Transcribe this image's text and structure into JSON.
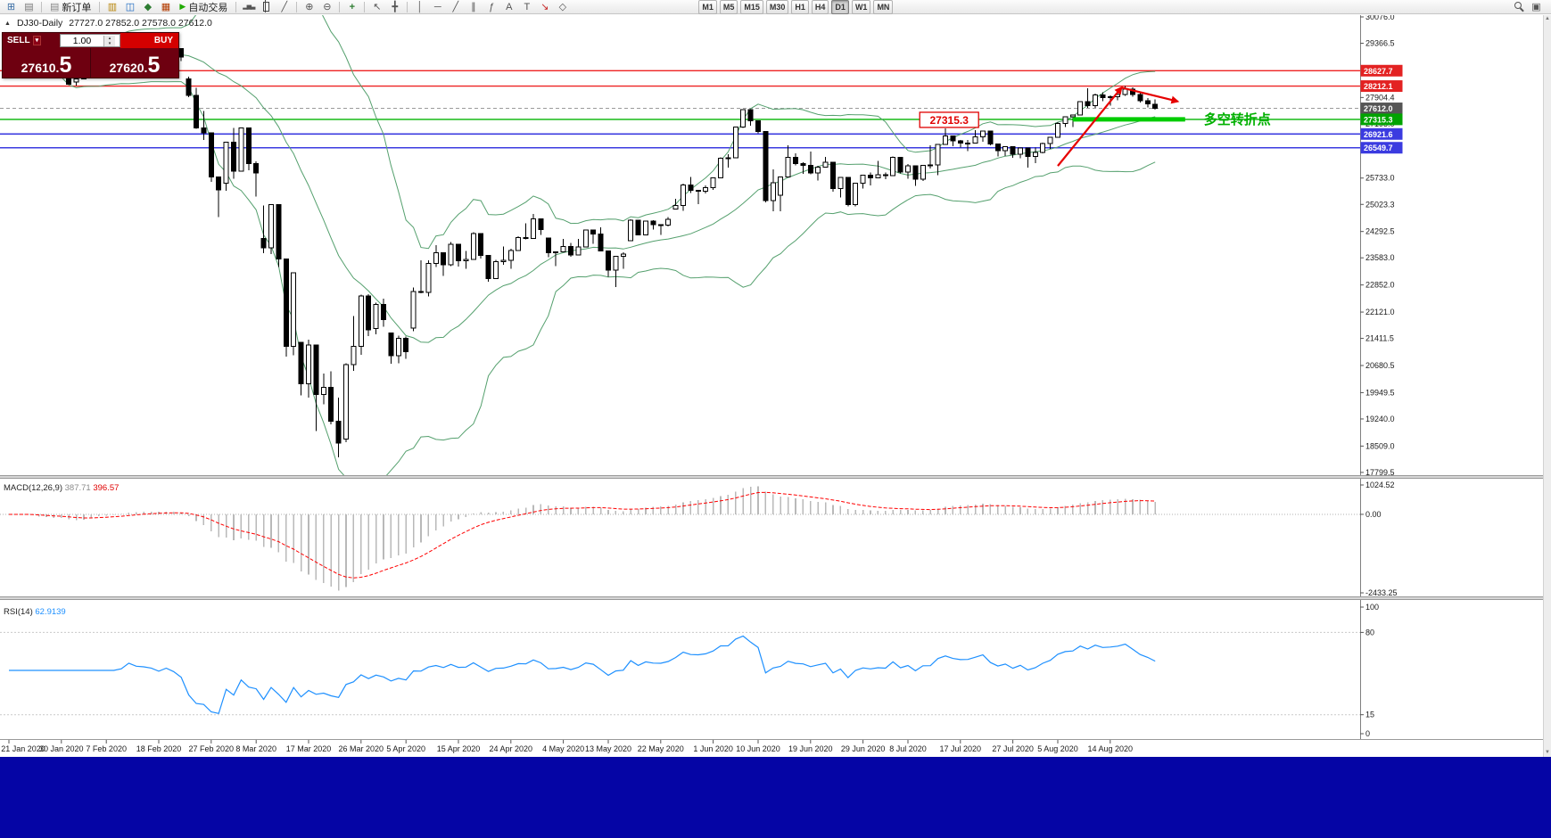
{
  "toolbar": {
    "new_order_label": "新订单",
    "auto_trading_label": "自动交易",
    "timeframes": [
      "M1",
      "M5",
      "M15",
      "M30",
      "H1",
      "H4",
      "D1",
      "W1",
      "MN"
    ],
    "active_timeframe": "D1"
  },
  "icons": {
    "new_chart": "⊞",
    "profiles": "▤",
    "new_order": "▤",
    "market_watch": "▥",
    "data_window": "◫",
    "navigator": "◆",
    "terminal": "▦",
    "auto_play": "▶",
    "bars": "▂▅▃",
    "line_chart": "╱",
    "zoom_in": "⊕",
    "zoom_out": "⊖",
    "indicators": "+",
    "cursor": "↖",
    "crosshair": "╋",
    "vline": "│",
    "hline": "─",
    "trendline": "╱",
    "channel": "∥",
    "fibonacci": "ƒ",
    "text": "A",
    "label": "T",
    "arrow": "↘",
    "shapes": "◇",
    "window_layout": "▣",
    "collapse": "▲",
    "caret": "▾",
    "spin_up": "▴",
    "spin_down": "▾",
    "scroll_up": "▲",
    "scroll_down": "▼"
  },
  "chart_header": {
    "title": "DJ30-Daily",
    "ohlc": "27727.0 27852.0 27578.0 27612.0"
  },
  "trade_panel": {
    "sell_label": "SELL",
    "buy_label": "BUY",
    "volume": "1.00",
    "sell_price": {
      "main": "27610.",
      "big": "5"
    },
    "buy_price": {
      "main": "27620.",
      "big": "5"
    }
  },
  "price_axis": {
    "plain_labels": [
      30076.0,
      29366.5,
      27904.4,
      27195.0,
      25733.0,
      25023.3,
      24292.5,
      23583.0,
      22852.0,
      22121.0,
      21411.5,
      20680.5,
      19949.5,
      19240.0,
      18509.0,
      17799.5
    ],
    "badges": [
      {
        "text": "28627.7",
        "price": 28627.7,
        "color": "#e32222"
      },
      {
        "text": "28212.1",
        "price": 28212.1,
        "color": "#e32222"
      },
      {
        "text": "27612.0",
        "price": 27612.0,
        "color": "#555555"
      },
      {
        "text": "27315.3",
        "price": 27315.3,
        "color": "#00a300"
      },
      {
        "text": "26921.6",
        "price": 26921.6,
        "color": "#3b3be0"
      },
      {
        "text": "26549.7",
        "price": 26549.7,
        "color": "#3b3be0"
      }
    ]
  },
  "time_axis": {
    "labels": [
      {
        "index": 0,
        "text": "21 Jan 2020"
      },
      {
        "index": 7,
        "text": "30 Jan 2020"
      },
      {
        "index": 13,
        "text": "7 Feb 2020"
      },
      {
        "index": 20,
        "text": "18 Feb 2020"
      },
      {
        "index": 27,
        "text": "27 Feb 2020"
      },
      {
        "index": 33,
        "text": "8 Mar 2020"
      },
      {
        "index": 40,
        "text": "17 Mar 2020"
      },
      {
        "index": 47,
        "text": "26 Mar 2020"
      },
      {
        "index": 53,
        "text": "5 Apr 2020"
      },
      {
        "index": 60,
        "text": "15 Apr 2020"
      },
      {
        "index": 67,
        "text": "24 Apr 2020"
      },
      {
        "index": 74,
        "text": "4 May 2020"
      },
      {
        "index": 80,
        "text": "13 May 2020"
      },
      {
        "index": 87,
        "text": "22 May 2020"
      },
      {
        "index": 94,
        "text": "1 Jun 2020"
      },
      {
        "index": 100,
        "text": "10 Jun 2020"
      },
      {
        "index": 107,
        "text": "19 Jun 2020"
      },
      {
        "index": 114,
        "text": "29 Jun 2020"
      },
      {
        "index": 120,
        "text": "8 Jul 2020"
      },
      {
        "index": 127,
        "text": "17 Jul 2020"
      },
      {
        "index": 134,
        "text": "27 Jul 2020"
      },
      {
        "index": 140,
        "text": "5 Aug 2020"
      },
      {
        "index": 147,
        "text": "14 Aug 2020"
      }
    ]
  },
  "macd": {
    "label": "MACD(12,26,9)",
    "value_main": "387.71",
    "value_signal": "396.57",
    "params": {
      "fast": 12,
      "slow": 26,
      "signal": 9
    },
    "axis": [
      "1024.52",
      "0.00",
      "-2433.25"
    ],
    "histogram_color": "#b9b9b9",
    "signal_color": "#ff0000"
  },
  "rsi": {
    "label": "RSI(14)",
    "value": "62.9139",
    "period": 14,
    "levels": [
      80,
      15
    ],
    "axis_values": [
      100,
      80,
      15,
      0
    ],
    "axis": [
      "100",
      "80",
      "15",
      "0"
    ],
    "line_color": "#1e90ff"
  },
  "chart_data": {
    "type": "candlestick",
    "symbol": "DJ30",
    "period": "Daily",
    "price_range_top": 30124,
    "price_range_bottom": 17725,
    "overlays": {
      "bollinger": {
        "period": 20,
        "deviation": 2,
        "color": "#55a06e"
      }
    },
    "price_lines": [
      {
        "price": 28627.7,
        "color": "#ee2222",
        "width": 1.4,
        "style": "solid"
      },
      {
        "price": 28212.1,
        "color": "#ee2222",
        "width": 1.4,
        "style": "solid"
      },
      {
        "price": 27612.0,
        "color": "#9a9a9a",
        "width": 1,
        "style": "dash"
      },
      {
        "price": 27315.3,
        "color": "#00b400",
        "width": 1.4,
        "style": "solid"
      },
      {
        "price": 26921.6,
        "color": "#3b3be0",
        "width": 1.6,
        "style": "solid"
      },
      {
        "price": 26549.7,
        "color": "#3b3be0",
        "width": 1.6,
        "style": "solid"
      }
    ],
    "annotations": {
      "thick_line": {
        "price": 27315.3,
        "from_index": 142,
        "to_index": 157,
        "color": "#00cc00",
        "width": 5
      },
      "arrow_color": "#e60000",
      "arrows": [
        {
          "from": {
            "index": 140,
            "price": 26060
          },
          "to": {
            "index": 148.5,
            "price": 28170
          }
        },
        {
          "from": {
            "index": 148.5,
            "price": 28170
          },
          "to": {
            "index": 156,
            "price": 27800
          }
        }
      ],
      "price_label_box": {
        "text": "27315.3",
        "index": 125.5,
        "anchor_price": 27290
      },
      "turning_point_text": {
        "text": "多空转折点",
        "index": 159.5,
        "price": 27315.3,
        "color": "#00b000"
      }
    },
    "candles": [
      [
        29250,
        29340,
        29140,
        29196
      ],
      [
        29196,
        29320,
        29150,
        29186
      ],
      [
        29186,
        29230,
        28950,
        29160
      ],
      [
        29160,
        29290,
        28870,
        28990
      ],
      [
        28790,
        28840,
        28440,
        28536
      ],
      [
        28536,
        28780,
        28500,
        28723
      ],
      [
        28723,
        28850,
        28650,
        28734
      ],
      [
        28734,
        28880,
        28550,
        28859
      ],
      [
        28859,
        28860,
        28250,
        28256
      ],
      [
        28320,
        28490,
        28220,
        28400
      ],
      [
        28400,
        28850,
        28390,
        28808
      ],
      [
        28808,
        29310,
        28800,
        29291
      ],
      [
        29291,
        29410,
        29220,
        29380
      ],
      [
        29380,
        29390,
        29060,
        29103
      ],
      [
        29060,
        29290,
        28950,
        29277
      ],
      [
        29277,
        29415,
        29210,
        29276
      ],
      [
        29276,
        29570,
        29270,
        29551
      ],
      [
        29551,
        29560,
        29340,
        29423
      ],
      [
        29423,
        29480,
        29330,
        29398
      ],
      [
        29398,
        29420,
        29300,
        29350
      ],
      [
        29350,
        29360,
        29120,
        29232
      ],
      [
        29232,
        29409,
        29190,
        29348
      ],
      [
        29348,
        29370,
        28960,
        29220
      ],
      [
        29220,
        29230,
        28890,
        28992
      ],
      [
        28400,
        28470,
        27910,
        27961
      ],
      [
        27961,
        28160,
        27060,
        27081
      ],
      [
        27081,
        27540,
        26760,
        26958
      ],
      [
        26958,
        26960,
        25630,
        25767
      ],
      [
        25767,
        25770,
        24680,
        25409
      ],
      [
        25590,
        26710,
        25390,
        26703
      ],
      [
        26703,
        27080,
        25710,
        25917
      ],
      [
        25917,
        27100,
        25910,
        27090
      ],
      [
        27090,
        27090,
        25940,
        26121
      ],
      [
        26121,
        26180,
        25230,
        25865
      ],
      [
        24100,
        24990,
        23710,
        23851
      ],
      [
        23851,
        25020,
        23690,
        25018
      ],
      [
        25018,
        25030,
        23330,
        23553
      ],
      [
        23553,
        23560,
        20920,
        21200
      ],
      [
        21200,
        23190,
        20960,
        23185
      ],
      [
        21300,
        21310,
        19880,
        20188
      ],
      [
        20188,
        21380,
        19810,
        21237
      ],
      [
        21237,
        21240,
        18910,
        19898
      ],
      [
        19898,
        20460,
        19630,
        20087
      ],
      [
        20087,
        20530,
        19090,
        19174
      ],
      [
        19174,
        19820,
        18210,
        18592
      ],
      [
        18700,
        20740,
        18610,
        20705
      ],
      [
        20705,
        22020,
        20540,
        21200
      ],
      [
        21200,
        22590,
        20970,
        22552
      ],
      [
        22552,
        22600,
        21470,
        21637
      ],
      [
        21680,
        22380,
        21520,
        22327
      ],
      [
        22327,
        22480,
        21720,
        21917
      ],
      [
        21560,
        21570,
        20730,
        20944
      ],
      [
        20944,
        21480,
        20740,
        21413
      ],
      [
        21413,
        21460,
        20860,
        21053
      ],
      [
        21690,
        22780,
        21600,
        22680
      ],
      [
        22680,
        23520,
        22630,
        22654
      ],
      [
        22654,
        23510,
        22540,
        23434
      ],
      [
        23434,
        23930,
        23340,
        23719
      ],
      [
        23719,
        23720,
        23100,
        23391
      ],
      [
        23391,
        24010,
        23360,
        23950
      ],
      [
        23950,
        23950,
        23350,
        23504
      ],
      [
        23504,
        23770,
        23290,
        23538
      ],
      [
        23538,
        24270,
        23530,
        24242
      ],
      [
        24242,
        24250,
        23560,
        23650
      ],
      [
        23650,
        23660,
        22940,
        23018
      ],
      [
        23018,
        23530,
        23010,
        23476
      ],
      [
        23476,
        23890,
        23400,
        23515
      ],
      [
        23515,
        23830,
        23290,
        23775
      ],
      [
        23775,
        24170,
        23770,
        24134
      ],
      [
        24134,
        24510,
        24080,
        24102
      ],
      [
        24102,
        24760,
        24100,
        24634
      ],
      [
        24634,
        24640,
        24200,
        24346
      ],
      [
        24120,
        24130,
        23600,
        23724
      ],
      [
        23724,
        23760,
        23360,
        23750
      ],
      [
        23750,
        24090,
        23740,
        23883
      ],
      [
        23883,
        23980,
        23610,
        23665
      ],
      [
        23665,
        24090,
        23660,
        23876
      ],
      [
        23876,
        24350,
        23870,
        24331
      ],
      [
        24331,
        24340,
        23960,
        24222
      ],
      [
        24222,
        24410,
        23760,
        23765
      ],
      [
        23765,
        23770,
        23070,
        23248
      ],
      [
        23248,
        23630,
        22790,
        23625
      ],
      [
        23625,
        23730,
        23290,
        23685
      ],
      [
        24050,
        24620,
        24040,
        24597
      ],
      [
        24597,
        24600,
        24190,
        24206
      ],
      [
        24206,
        24580,
        24200,
        24576
      ],
      [
        24576,
        24600,
        24340,
        24474
      ],
      [
        24474,
        24480,
        24200,
        24465
      ],
      [
        24465,
        24680,
        24430,
        24620
      ],
      [
        24900,
        25180,
        24890,
        24995
      ],
      [
        24995,
        25580,
        24850,
        25548
      ],
      [
        25548,
        25760,
        25330,
        25401
      ],
      [
        25401,
        25410,
        25030,
        25383
      ],
      [
        25383,
        25530,
        25320,
        25475
      ],
      [
        25475,
        25750,
        25410,
        25743
      ],
      [
        25743,
        26290,
        25740,
        26270
      ],
      [
        26270,
        26380,
        26010,
        26282
      ],
      [
        26282,
        27110,
        26280,
        27111
      ],
      [
        27111,
        27580,
        27090,
        27572
      ],
      [
        27572,
        27580,
        27150,
        27272
      ],
      [
        27272,
        27280,
        26940,
        26990
      ],
      [
        26990,
        26995,
        25080,
        25128
      ],
      [
        25128,
        25965,
        24840,
        25605
      ],
      [
        25270,
        25780,
        24840,
        25763
      ],
      [
        25763,
        26610,
        25760,
        26290
      ],
      [
        26290,
        26400,
        26070,
        26120
      ],
      [
        26120,
        26160,
        25850,
        26080
      ],
      [
        26080,
        26450,
        25840,
        25871
      ],
      [
        25871,
        26060,
        25670,
        26025
      ],
      [
        26025,
        26300,
        26020,
        26156
      ],
      [
        26156,
        26160,
        25370,
        25446
      ],
      [
        25446,
        25750,
        25210,
        25746
      ],
      [
        25746,
        25750,
        24970,
        25016
      ],
      [
        25016,
        25600,
        24970,
        25596
      ],
      [
        25596,
        25820,
        25450,
        25813
      ],
      [
        25813,
        25880,
        25530,
        25735
      ],
      [
        25735,
        26200,
        25730,
        25827
      ],
      [
        25827,
        25880,
        25700,
        25800
      ],
      [
        25800,
        26310,
        25790,
        26287
      ],
      [
        26287,
        26290,
        25860,
        25890
      ],
      [
        25890,
        26110,
        25720,
        26067
      ],
      [
        26067,
        26070,
        25520,
        25706
      ],
      [
        25706,
        26080,
        25650,
        26075
      ],
      [
        26075,
        26620,
        25990,
        26085
      ],
      [
        26085,
        26650,
        25810,
        26643
      ],
      [
        26643,
        27070,
        26640,
        26870
      ],
      [
        26870,
        26880,
        26590,
        26735
      ],
      [
        26735,
        26760,
        26550,
        26672
      ],
      [
        26672,
        26760,
        26460,
        26681
      ],
      [
        26681,
        27030,
        26680,
        26840
      ],
      [
        26840,
        27010,
        26710,
        27006
      ],
      [
        27006,
        27010,
        26610,
        26652
      ],
      [
        26652,
        26660,
        26310,
        26470
      ],
      [
        26470,
        26590,
        26330,
        26585
      ],
      [
        26585,
        26590,
        26280,
        26379
      ],
      [
        26379,
        26560,
        26270,
        26540
      ],
      [
        26540,
        26545,
        26010,
        26313
      ],
      [
        26313,
        26550,
        26130,
        26428
      ],
      [
        26428,
        26690,
        26400,
        26664
      ],
      [
        26664,
        26850,
        26520,
        26828
      ],
      [
        26828,
        27240,
        26820,
        27202
      ],
      [
        27202,
        27390,
        27110,
        27387
      ],
      [
        27387,
        27440,
        27110,
        27433
      ],
      [
        27433,
        27800,
        27420,
        27791
      ],
      [
        27791,
        28155,
        27620,
        27686
      ],
      [
        27686,
        28010,
        27630,
        27977
      ],
      [
        27977,
        28050,
        27810,
        27897
      ],
      [
        27897,
        27960,
        27690,
        27931
      ],
      [
        27931,
        28040,
        27830,
        27990
      ],
      [
        27990,
        28210,
        27950,
        28130
      ],
      [
        28130,
        28180,
        27920,
        27980
      ],
      [
        27980,
        28060,
        27770,
        27820
      ],
      [
        27820,
        27890,
        27640,
        27730
      ],
      [
        27727,
        27852,
        27578,
        27612
      ]
    ]
  }
}
